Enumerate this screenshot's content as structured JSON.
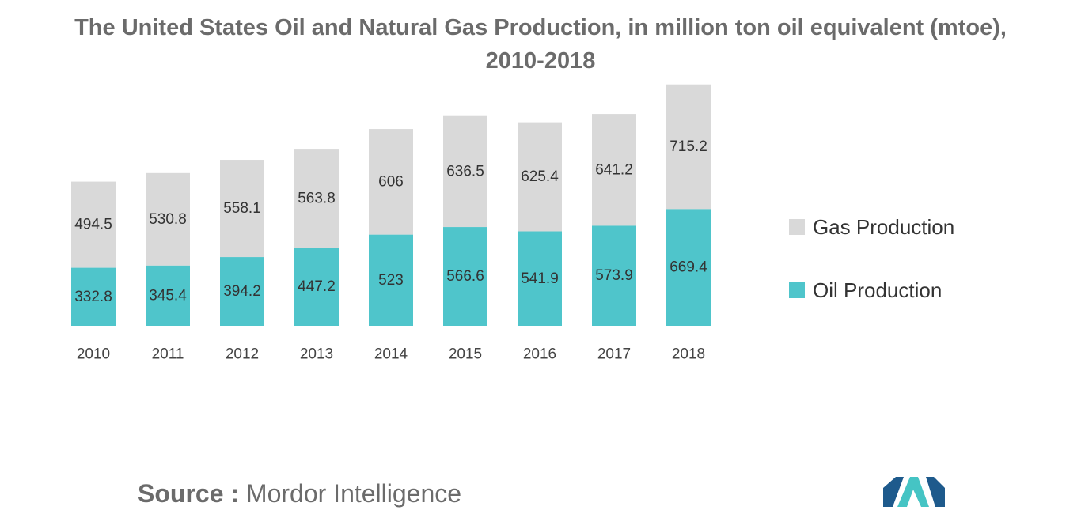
{
  "chart_data": {
    "type": "bar",
    "stacked": true,
    "title_line1": "The United States Oil and Natural Gas Production, in million ton oil equivalent (mtoe),",
    "title_line2": "2010-2018",
    "categories": [
      "2010",
      "2011",
      "2012",
      "2013",
      "2014",
      "2015",
      "2016",
      "2017",
      "2018"
    ],
    "series": [
      {
        "name": "Oil Production",
        "color": "#4fc5cb",
        "values": [
          332.8,
          345.4,
          394.2,
          447.2,
          523,
          566.6,
          541.9,
          573.9,
          669.4
        ]
      },
      {
        "name": "Gas Production",
        "color": "#d9d9d9",
        "values": [
          494.5,
          530.8,
          558.1,
          563.8,
          606,
          636.5,
          625.4,
          641.2,
          715.2
        ]
      }
    ],
    "legend_position": "right",
    "grid": false
  },
  "legend": {
    "items": [
      {
        "label": "Gas Production",
        "color": "#d9d9d9"
      },
      {
        "label": "Oil Production",
        "color": "#4fc5cb"
      }
    ]
  },
  "source": {
    "label": "Source :",
    "text": "Mordor Intelligence"
  },
  "logo": {
    "icon": "mordor-intelligence-logo-icon",
    "color_dark": "#1e5a8c",
    "color_light": "#45c4c4"
  }
}
